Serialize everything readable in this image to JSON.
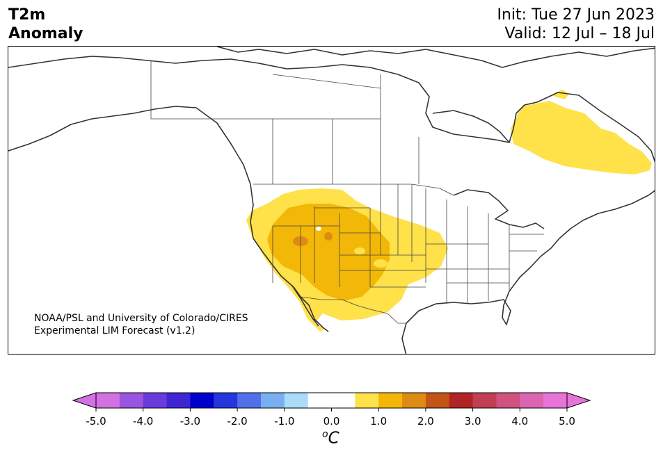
{
  "title": {
    "line1": "T2m",
    "line2": "Anomaly"
  },
  "dates": {
    "init": "Init: Tue 27 Jun 2023",
    "valid": "Valid: 12 Jul – 18 Jul"
  },
  "credit": {
    "line1": "NOAA/PSL and University of Colorado/CIRES",
    "line2": "Experimental LIM Forecast (v1.2)"
  },
  "map": {
    "region": "North America",
    "field": "2 m temperature anomaly",
    "anomaly_colors": {
      "0.5_to_1.0": "#ffe14a",
      "1.0_to_1.5": "#f2b707",
      "1.5_to_2.0": "#dc8b13"
    }
  },
  "colorbar": {
    "ticks": [
      "-5.0",
      "-4.0",
      "-3.0",
      "-2.0",
      "-1.0",
      "0.0",
      "1.0",
      "2.0",
      "3.0",
      "4.0",
      "5.0"
    ],
    "units_base": "C",
    "units_sup": "o",
    "colors": [
      "#d371e3",
      "#9b54e0",
      "#6a3bdb",
      "#3e26d4",
      "#0000cd",
      "#2536de",
      "#4f70e8",
      "#77aff0",
      "#aadcfa",
      "#ffffff",
      "#ffffff",
      "#ffe14a",
      "#f2b707",
      "#dc8b13",
      "#c45418",
      "#b02424",
      "#c23e52",
      "#cf5280",
      "#dc65b1",
      "#e774d9"
    ],
    "under_color": "#d371e3",
    "over_color": "#e774d9"
  }
}
